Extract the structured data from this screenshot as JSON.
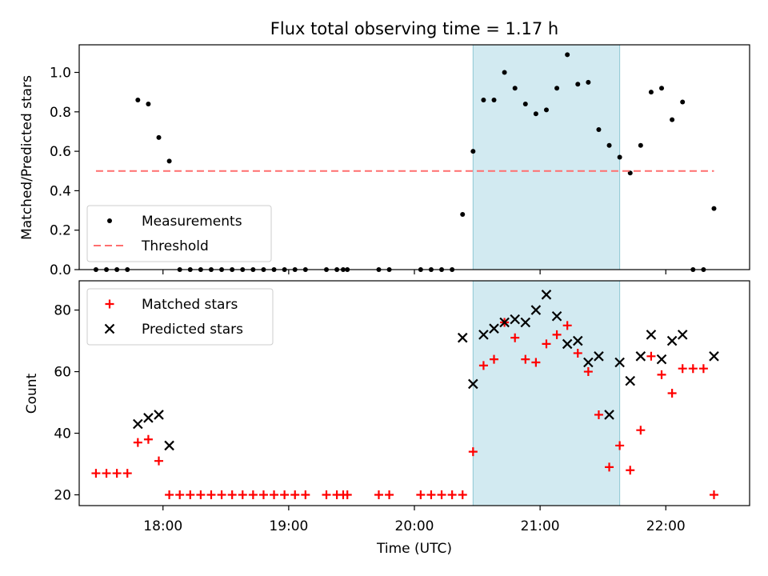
{
  "chart_data": [
    {
      "type": "scatter",
      "title": "Flux total observing time = 1.17 h",
      "xlabel": "",
      "ylabel": "Matched/Predicted stars",
      "xlim": [
        "17:20",
        "22:40"
      ],
      "ylim": [
        0,
        1.14
      ],
      "yticks": [
        "0.0",
        "0.2",
        "0.4",
        "0.6",
        "0.8",
        "1.0"
      ],
      "legend": "lower-left",
      "shaded_interval": [
        "20:28",
        "21:38"
      ],
      "shade_color": "#add8e6",
      "series": [
        {
          "name": "Measurements",
          "kind": "dot",
          "color": "#000000",
          "x": [
            "17:28",
            "17:33",
            "17:38",
            "17:43",
            "17:48",
            "17:53",
            "17:58",
            "18:03",
            "18:08",
            "18:13",
            "18:18",
            "18:23",
            "18:28",
            "18:33",
            "18:38",
            "18:43",
            "18:48",
            "18:53",
            "18:58",
            "19:03",
            "19:08",
            "19:18",
            "19:23",
            "19:26",
            "19:28",
            "19:43",
            "19:48",
            "20:03",
            "20:08",
            "20:13",
            "20:18",
            "20:23",
            "20:28",
            "20:33",
            "20:38",
            "20:43",
            "20:48",
            "20:53",
            "20:58",
            "21:03",
            "21:08",
            "21:13",
            "21:18",
            "21:23",
            "21:28",
            "21:33",
            "21:38",
            "21:43",
            "21:48",
            "21:53",
            "21:58",
            "22:03",
            "22:08",
            "22:13",
            "22:18",
            "22:23"
          ],
          "y": [
            0,
            0,
            0,
            0,
            0.86,
            0.84,
            0.67,
            0.55,
            0,
            0,
            0,
            0,
            0,
            0,
            0,
            0,
            0,
            0,
            0,
            0,
            0,
            0,
            0,
            0,
            0,
            0,
            0,
            0,
            0,
            0,
            0,
            0.28,
            0.6,
            0.86,
            0.86,
            1.0,
            0.92,
            0.84,
            0.79,
            0.81,
            0.92,
            1.09,
            0.94,
            0.95,
            0.71,
            0.63,
            0.57,
            0.49,
            0.63,
            0.9,
            0.92,
            0.76,
            0.85,
            0,
            0,
            0.31
          ]
        },
        {
          "name": "Threshold",
          "kind": "dashed-line",
          "color": "#ff6f6f",
          "x": [
            "17:28",
            "22:23"
          ],
          "y": [
            0.5,
            0.5
          ]
        }
      ]
    },
    {
      "type": "scatter",
      "title": "",
      "xlabel": "Time (UTC)",
      "ylabel": "Count",
      "xlim": [
        "17:20",
        "22:40"
      ],
      "xticks": [
        "18:00",
        "19:00",
        "20:00",
        "21:00",
        "22:00"
      ],
      "ylim": [
        16.5,
        89.5
      ],
      "yticks": [
        "20",
        "40",
        "60",
        "80"
      ],
      "legend": "upper-left",
      "shaded_interval": [
        "20:28",
        "21:38"
      ],
      "shade_color": "#add8e6",
      "series": [
        {
          "name": "Matched stars",
          "kind": "plus",
          "color": "#ff0000",
          "x": [
            "17:28",
            "17:33",
            "17:38",
            "17:43",
            "17:48",
            "17:53",
            "17:58",
            "18:03",
            "18:08",
            "18:13",
            "18:18",
            "18:23",
            "18:28",
            "18:33",
            "18:38",
            "18:43",
            "18:48",
            "18:53",
            "18:58",
            "19:03",
            "19:08",
            "19:18",
            "19:23",
            "19:26",
            "19:28",
            "19:43",
            "19:48",
            "20:03",
            "20:08",
            "20:13",
            "20:18",
            "20:23",
            "20:28",
            "20:33",
            "20:38",
            "20:43",
            "20:48",
            "20:53",
            "20:58",
            "21:03",
            "21:08",
            "21:13",
            "21:18",
            "21:23",
            "21:28",
            "21:33",
            "21:38",
            "21:43",
            "21:48",
            "21:53",
            "21:58",
            "22:03",
            "22:08",
            "22:13",
            "22:18",
            "22:23"
          ],
          "y": [
            27,
            27,
            27,
            27,
            37,
            38,
            31,
            20,
            20,
            20,
            20,
            20,
            20,
            20,
            20,
            20,
            20,
            20,
            20,
            20,
            20,
            20,
            20,
            20,
            20,
            20,
            20,
            20,
            20,
            20,
            20,
            20,
            34,
            62,
            64,
            76,
            71,
            64,
            63,
            69,
            72,
            75,
            66,
            60,
            46,
            29,
            36,
            28,
            41,
            65,
            59,
            53,
            61,
            61,
            61,
            20
          ]
        },
        {
          "name": "Predicted stars",
          "kind": "x",
          "color": "#000000",
          "x": [
            "17:48",
            "17:53",
            "17:58",
            "18:03",
            "20:23",
            "20:28",
            "20:33",
            "20:38",
            "20:43",
            "20:48",
            "20:53",
            "20:58",
            "21:03",
            "21:08",
            "21:13",
            "21:18",
            "21:23",
            "21:28",
            "21:33",
            "21:38",
            "21:43",
            "21:48",
            "21:53",
            "21:58",
            "22:03",
            "22:08",
            "22:23"
          ],
          "y": [
            43,
            45,
            46,
            36,
            71,
            56,
            72,
            74,
            76,
            77,
            76,
            80,
            85,
            78,
            69,
            70,
            63,
            65,
            46,
            63,
            57,
            65,
            72,
            64,
            70,
            72,
            65
          ]
        }
      ]
    }
  ]
}
